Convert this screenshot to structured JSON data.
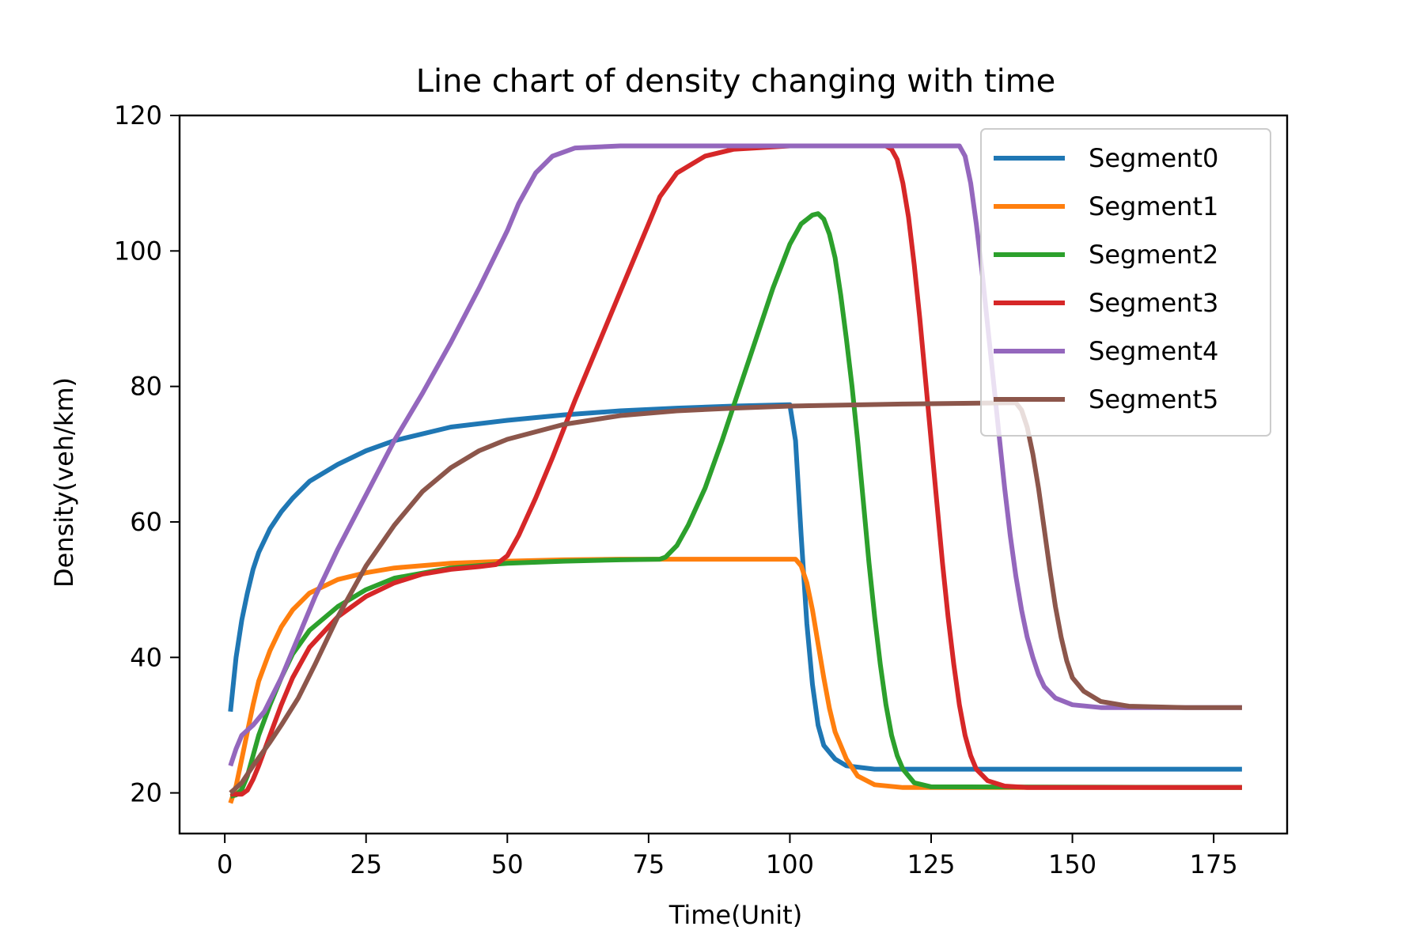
{
  "chart_data": {
    "type": "line",
    "title": "Line chart of density changing with time",
    "xlabel": "Time(Unit)",
    "ylabel": "Density(veh/km)",
    "xlim": [
      -8,
      188
    ],
    "ylim": [
      14,
      120
    ],
    "xticks": [
      0,
      25,
      50,
      75,
      100,
      125,
      150,
      175
    ],
    "yticks": [
      20,
      40,
      60,
      80,
      100,
      120
    ],
    "grid": false,
    "legend_position": "top-right",
    "series": [
      {
        "name": "Segment0",
        "color": "#1f77b4",
        "points": [
          [
            1,
            32
          ],
          [
            2,
            40
          ],
          [
            3,
            45.5
          ],
          [
            4,
            49.5
          ],
          [
            5,
            53
          ],
          [
            6,
            55.5
          ],
          [
            8,
            59
          ],
          [
            10,
            61.5
          ],
          [
            12,
            63.5
          ],
          [
            15,
            66
          ],
          [
            20,
            68.5
          ],
          [
            25,
            70.5
          ],
          [
            30,
            72
          ],
          [
            40,
            74
          ],
          [
            50,
            75
          ],
          [
            60,
            75.8
          ],
          [
            70,
            76.4
          ],
          [
            80,
            76.8
          ],
          [
            90,
            77.1
          ],
          [
            100,
            77.3
          ],
          [
            101,
            72
          ],
          [
            102,
            58
          ],
          [
            103,
            45
          ],
          [
            104,
            36
          ],
          [
            105,
            30
          ],
          [
            106,
            27
          ],
          [
            108,
            25
          ],
          [
            110,
            24
          ],
          [
            115,
            23.5
          ],
          [
            180,
            23.5
          ]
        ]
      },
      {
        "name": "Segment1",
        "color": "#ff7f0e",
        "points": [
          [
            1,
            18.5
          ],
          [
            2,
            21
          ],
          [
            3,
            25
          ],
          [
            4,
            29
          ],
          [
            5,
            33
          ],
          [
            6,
            36.5
          ],
          [
            8,
            41
          ],
          [
            10,
            44.5
          ],
          [
            12,
            47
          ],
          [
            15,
            49.5
          ],
          [
            20,
            51.5
          ],
          [
            25,
            52.5
          ],
          [
            30,
            53.2
          ],
          [
            40,
            53.9
          ],
          [
            50,
            54.2
          ],
          [
            60,
            54.4
          ],
          [
            70,
            54.5
          ],
          [
            80,
            54.5
          ],
          [
            90,
            54.5
          ],
          [
            100,
            54.5
          ],
          [
            101,
            54.5
          ],
          [
            102,
            53.5
          ],
          [
            103,
            51
          ],
          [
            104,
            47
          ],
          [
            105,
            42
          ],
          [
            106,
            37
          ],
          [
            107,
            32.5
          ],
          [
            108,
            29
          ],
          [
            110,
            25
          ],
          [
            112,
            22.5
          ],
          [
            115,
            21.2
          ],
          [
            120,
            20.8
          ],
          [
            180,
            20.8
          ]
        ]
      },
      {
        "name": "Segment2",
        "color": "#2ca02c",
        "points": [
          [
            1,
            19.5
          ],
          [
            2,
            19.7
          ],
          [
            3,
            20.5
          ],
          [
            4,
            22.5
          ],
          [
            5,
            25.5
          ],
          [
            6,
            28.5
          ],
          [
            8,
            33
          ],
          [
            10,
            37
          ],
          [
            12,
            40.5
          ],
          [
            15,
            44
          ],
          [
            20,
            47.5
          ],
          [
            25,
            50
          ],
          [
            30,
            51.7
          ],
          [
            40,
            53.2
          ],
          [
            50,
            53.9
          ],
          [
            60,
            54.2
          ],
          [
            70,
            54.4
          ],
          [
            77,
            54.5
          ],
          [
            78,
            54.8
          ],
          [
            80,
            56.5
          ],
          [
            82,
            59.5
          ],
          [
            85,
            65
          ],
          [
            88,
            72
          ],
          [
            91,
            79.5
          ],
          [
            94,
            87
          ],
          [
            97,
            94.5
          ],
          [
            100,
            101
          ],
          [
            102,
            104
          ],
          [
            104,
            105.3
          ],
          [
            105,
            105.5
          ],
          [
            106,
            104.7
          ],
          [
            107,
            102.5
          ],
          [
            108,
            99
          ],
          [
            109,
            93.5
          ],
          [
            110,
            87
          ],
          [
            111,
            80
          ],
          [
            112,
            72
          ],
          [
            113,
            63
          ],
          [
            114,
            54
          ],
          [
            115,
            46
          ],
          [
            116,
            39
          ],
          [
            117,
            33
          ],
          [
            118,
            28.5
          ],
          [
            119,
            25.5
          ],
          [
            120,
            23.5
          ],
          [
            122,
            21.5
          ],
          [
            125,
            20.9
          ],
          [
            180,
            20.8
          ]
        ]
      },
      {
        "name": "Segment3",
        "color": "#d62728",
        "points": [
          [
            1,
            19.8
          ],
          [
            3,
            19.8
          ],
          [
            4,
            20.4
          ],
          [
            5,
            22
          ],
          [
            6,
            24
          ],
          [
            8,
            28.5
          ],
          [
            10,
            33
          ],
          [
            12,
            37
          ],
          [
            15,
            41.5
          ],
          [
            20,
            46
          ],
          [
            25,
            49
          ],
          [
            30,
            51
          ],
          [
            35,
            52.3
          ],
          [
            40,
            53
          ],
          [
            45,
            53.4
          ],
          [
            48,
            53.7
          ],
          [
            50,
            55
          ],
          [
            52,
            58
          ],
          [
            55,
            63.5
          ],
          [
            58,
            69.5
          ],
          [
            62,
            78
          ],
          [
            66,
            86
          ],
          [
            70,
            94
          ],
          [
            74,
            102
          ],
          [
            77,
            108
          ],
          [
            80,
            111.5
          ],
          [
            85,
            114
          ],
          [
            90,
            115
          ],
          [
            100,
            115.5
          ],
          [
            117,
            115.5
          ],
          [
            118,
            115
          ],
          [
            119,
            113.5
          ],
          [
            120,
            110
          ],
          [
            121,
            105
          ],
          [
            122,
            98
          ],
          [
            123,
            90
          ],
          [
            124,
            81
          ],
          [
            125,
            72
          ],
          [
            126,
            63
          ],
          [
            127,
            54
          ],
          [
            128,
            46
          ],
          [
            129,
            39
          ],
          [
            130,
            33
          ],
          [
            131,
            28.5
          ],
          [
            132,
            25.5
          ],
          [
            133,
            23.5
          ],
          [
            135,
            21.8
          ],
          [
            138,
            21
          ],
          [
            142,
            20.8
          ],
          [
            180,
            20.8
          ]
        ]
      },
      {
        "name": "Segment4",
        "color": "#9467bd",
        "points": [
          [
            1,
            24
          ],
          [
            2,
            26.5
          ],
          [
            3,
            28.5
          ],
          [
            5,
            30
          ],
          [
            7,
            32
          ],
          [
            10,
            37
          ],
          [
            13,
            43
          ],
          [
            16,
            49
          ],
          [
            20,
            56
          ],
          [
            25,
            64
          ],
          [
            30,
            72
          ],
          [
            35,
            79
          ],
          [
            40,
            86.5
          ],
          [
            45,
            94.5
          ],
          [
            50,
            103
          ],
          [
            52,
            107
          ],
          [
            55,
            111.5
          ],
          [
            58,
            114
          ],
          [
            62,
            115.2
          ],
          [
            70,
            115.5
          ],
          [
            100,
            115.5
          ],
          [
            129,
            115.5
          ],
          [
            130,
            115.5
          ],
          [
            131,
            114
          ],
          [
            132,
            110
          ],
          [
            133,
            104
          ],
          [
            134,
            97
          ],
          [
            135,
            89
          ],
          [
            136,
            81
          ],
          [
            137,
            73
          ],
          [
            138,
            65
          ],
          [
            139,
            58
          ],
          [
            140,
            52
          ],
          [
            141,
            47
          ],
          [
            142,
            43
          ],
          [
            143,
            40
          ],
          [
            144,
            37.5
          ],
          [
            145,
            35.7
          ],
          [
            147,
            34
          ],
          [
            150,
            33
          ],
          [
            155,
            32.6
          ],
          [
            180,
            32.6
          ]
        ]
      },
      {
        "name": "Segment5",
        "color": "#8c564b",
        "points": [
          [
            1,
            20
          ],
          [
            3,
            21.5
          ],
          [
            5,
            24
          ],
          [
            8,
            27.5
          ],
          [
            10,
            30
          ],
          [
            13,
            34
          ],
          [
            16,
            39
          ],
          [
            20,
            46
          ],
          [
            25,
            53.5
          ],
          [
            30,
            59.5
          ],
          [
            35,
            64.5
          ],
          [
            40,
            68
          ],
          [
            45,
            70.5
          ],
          [
            50,
            72.2
          ],
          [
            60,
            74.4
          ],
          [
            70,
            75.7
          ],
          [
            80,
            76.4
          ],
          [
            90,
            76.8
          ],
          [
            100,
            77.1
          ],
          [
            120,
            77.4
          ],
          [
            140,
            77.6
          ],
          [
            141,
            76.5
          ],
          [
            142,
            74
          ],
          [
            143,
            70
          ],
          [
            144,
            65
          ],
          [
            145,
            59
          ],
          [
            146,
            53
          ],
          [
            147,
            47.5
          ],
          [
            148,
            43
          ],
          [
            149,
            39.5
          ],
          [
            150,
            37
          ],
          [
            152,
            35
          ],
          [
            155,
            33.5
          ],
          [
            160,
            32.8
          ],
          [
            170,
            32.6
          ],
          [
            180,
            32.6
          ]
        ]
      }
    ]
  }
}
